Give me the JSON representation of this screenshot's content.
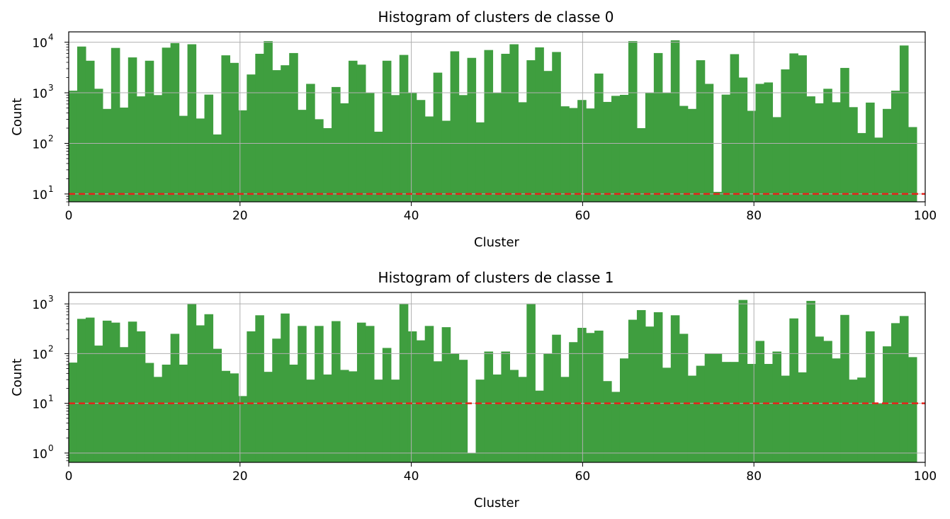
{
  "chart_data": [
    {
      "type": "bar",
      "title": "Histogram of clusters de classe 0",
      "xlabel": "Cluster",
      "ylabel": "Count",
      "yscale": "log",
      "xlim": [
        0,
        100
      ],
      "ylim": [
        7,
        16000
      ],
      "xticks": [
        0,
        20,
        40,
        60,
        80,
        100
      ],
      "yticks": [
        10,
        100,
        1000,
        10000
      ],
      "yticklabels": [
        [
          "10",
          "1"
        ],
        [
          "10",
          "2"
        ],
        [
          "10",
          "3"
        ],
        [
          "10",
          "4"
        ]
      ],
      "threshold": 10,
      "grid": true,
      "bar_color": "#3f9e3f",
      "threshold_color": "#e8211b",
      "values": [
        1100,
        8200,
        4300,
        1200,
        480,
        7700,
        510,
        5000,
        850,
        4300,
        900,
        7800,
        9600,
        350,
        9100,
        310,
        920,
        150,
        5500,
        3900,
        450,
        2300,
        5900,
        10500,
        2800,
        3500,
        6100,
        460,
        1500,
        300,
        200,
        1300,
        620,
        4300,
        3600,
        1000,
        170,
        4300,
        900,
        5600,
        1000,
        720,
        340,
        2500,
        280,
        6600,
        900,
        4900,
        260,
        7000,
        1000,
        5900,
        9100,
        650,
        4400,
        7900,
        2700,
        6400,
        540,
        500,
        720,
        490,
        2400,
        660,
        870,
        910,
        10500,
        200,
        1000,
        6100,
        1000,
        10900,
        550,
        480,
        4400,
        1500,
        11,
        920,
        5800,
        2000,
        440,
        1500,
        1600,
        330,
        2900,
        6000,
        5500,
        850,
        620,
        1200,
        650,
        3100,
        520,
        160,
        640,
        130,
        480,
        1100,
        8600,
        210
      ]
    },
    {
      "type": "bar",
      "title": "Histogram of clusters de classe 1",
      "xlabel": "Cluster",
      "ylabel": "Count",
      "yscale": "log",
      "xlim": [
        0,
        100
      ],
      "ylim": [
        0.65,
        1700
      ],
      "xticks": [
        0,
        20,
        40,
        60,
        80,
        100
      ],
      "yticks": [
        1,
        10,
        100,
        1000
      ],
      "yticklabels": [
        [
          "10",
          "0"
        ],
        [
          "10",
          "1"
        ],
        [
          "10",
          "2"
        ],
        [
          "10",
          "3"
        ]
      ],
      "threshold": 10,
      "grid": true,
      "bar_color": "#3f9e3f",
      "threshold_color": "#e8211b",
      "values": [
        66,
        500,
        530,
        145,
        460,
        420,
        135,
        440,
        280,
        65,
        34,
        60,
        250,
        60,
        1000,
        370,
        620,
        125,
        45,
        40,
        14,
        280,
        590,
        43,
        200,
        640,
        60,
        360,
        30,
        360,
        38,
        450,
        47,
        44,
        420,
        360,
        30,
        130,
        30,
        1000,
        280,
        185,
        360,
        70,
        340,
        100,
        75,
        1,
        30,
        110,
        38,
        110,
        47,
        34,
        1000,
        18,
        100,
        240,
        34,
        170,
        330,
        260,
        290,
        28,
        17,
        80,
        480,
        750,
        350,
        680,
        52,
        590,
        250,
        36,
        57,
        100,
        100,
        68,
        68,
        1200,
        62,
        180,
        62,
        110,
        36,
        510,
        42,
        1150,
        220,
        180,
        80,
        600,
        30,
        33,
        280,
        10,
        140,
        410,
        570,
        85
      ]
    }
  ]
}
